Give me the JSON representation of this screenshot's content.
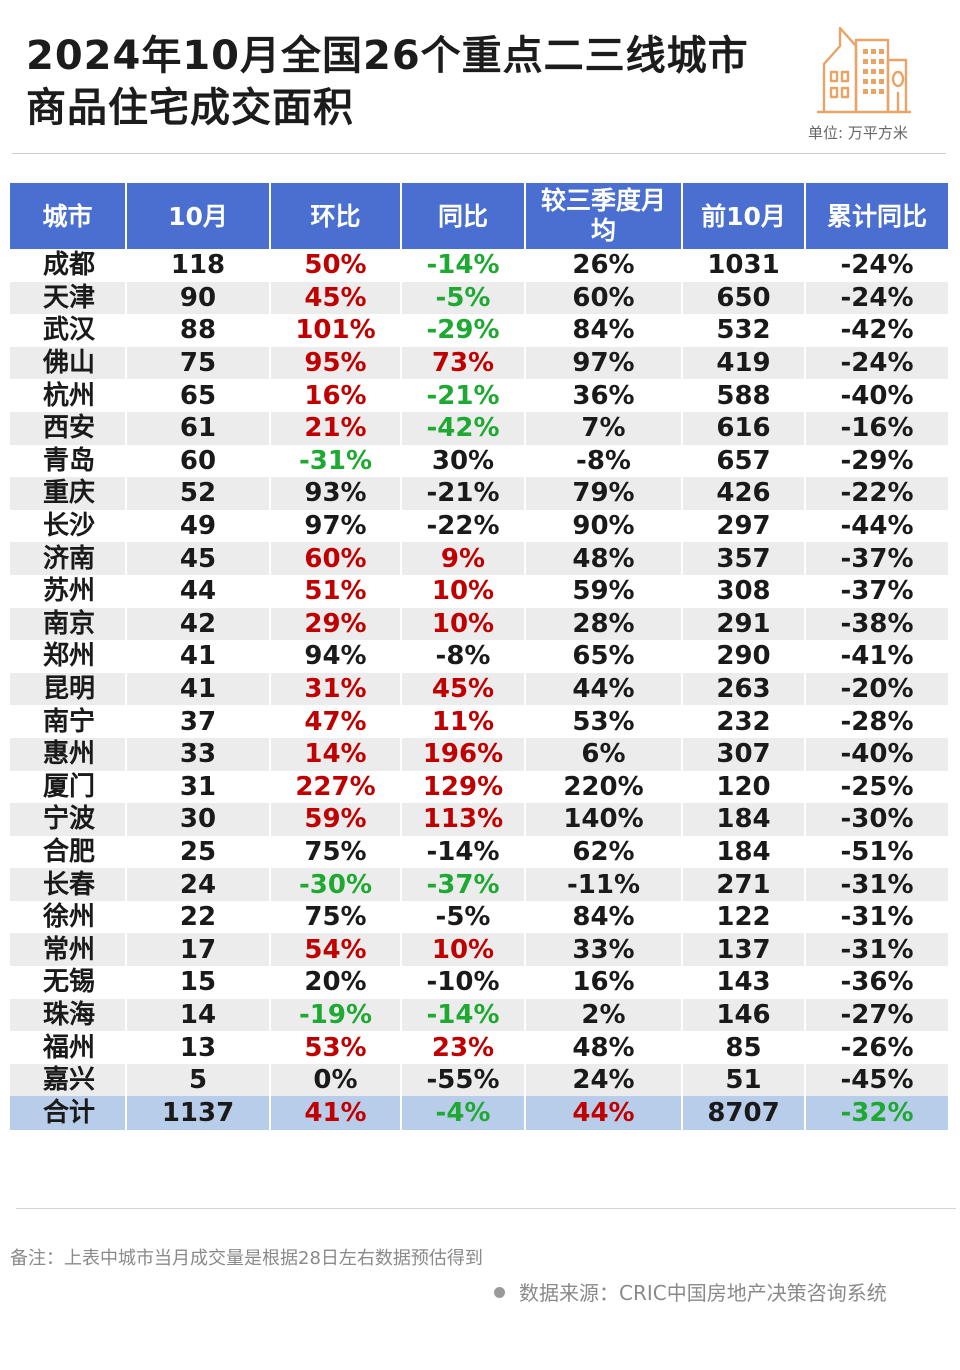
{
  "header": {
    "title_line1": "2024年10月全国26个重点二三线城市",
    "title_line2": "商品住宅成交面积",
    "unit": "单位: 万平方米"
  },
  "colors": {
    "header_bg": "#4a6fd1",
    "total_row_bg": "#b8cde9",
    "stripe_bg": "#ececec",
    "increase_red": "#c00000",
    "decrease_green": "#1fa832",
    "icon_orange": "#e8a366"
  },
  "chart_data": {
    "type": "table",
    "columns": [
      "城市",
      "10月",
      "环比",
      "同比",
      "较三季度月均",
      "前10月",
      "累计同比"
    ],
    "rows": [
      [
        "成都",
        "118",
        "50%",
        "-14%",
        "26%",
        "1031",
        "-24%"
      ],
      [
        "天津",
        "90",
        "45%",
        "-5%",
        "60%",
        "650",
        "-24%"
      ],
      [
        "武汉",
        "88",
        "101%",
        "-29%",
        "84%",
        "532",
        "-42%"
      ],
      [
        "佛山",
        "75",
        "95%",
        "73%",
        "97%",
        "419",
        "-24%"
      ],
      [
        "杭州",
        "65",
        "16%",
        "-21%",
        "36%",
        "588",
        "-40%"
      ],
      [
        "西安",
        "61",
        "21%",
        "-42%",
        "7%",
        "616",
        "-16%"
      ],
      [
        "青岛",
        "60",
        "-31%",
        "30%",
        "-8%",
        "657",
        "-29%"
      ],
      [
        "重庆",
        "52",
        "93%",
        "-21%",
        "79%",
        "426",
        "-22%"
      ],
      [
        "长沙",
        "49",
        "97%",
        "-22%",
        "90%",
        "297",
        "-44%"
      ],
      [
        "济南",
        "45",
        "60%",
        "9%",
        "48%",
        "357",
        "-37%"
      ],
      [
        "苏州",
        "44",
        "51%",
        "10%",
        "59%",
        "308",
        "-37%"
      ],
      [
        "南京",
        "42",
        "29%",
        "10%",
        "28%",
        "291",
        "-38%"
      ],
      [
        "郑州",
        "41",
        "94%",
        "-8%",
        "65%",
        "290",
        "-41%"
      ],
      [
        "昆明",
        "41",
        "31%",
        "45%",
        "44%",
        "263",
        "-20%"
      ],
      [
        "南宁",
        "37",
        "47%",
        "11%",
        "53%",
        "232",
        "-28%"
      ],
      [
        "惠州",
        "33",
        "14%",
        "196%",
        "6%",
        "307",
        "-40%"
      ],
      [
        "厦门",
        "31",
        "227%",
        "129%",
        "220%",
        "120",
        "-25%"
      ],
      [
        "宁波",
        "30",
        "59%",
        "113%",
        "140%",
        "184",
        "-30%"
      ],
      [
        "合肥",
        "25",
        "75%",
        "-14%",
        "62%",
        "184",
        "-51%"
      ],
      [
        "长春",
        "24",
        "-30%",
        "-37%",
        "-11%",
        "271",
        "-31%"
      ],
      [
        "徐州",
        "22",
        "75%",
        "-5%",
        "84%",
        "122",
        "-31%"
      ],
      [
        "常州",
        "17",
        "54%",
        "10%",
        "33%",
        "137",
        "-31%"
      ],
      [
        "无锡",
        "15",
        "20%",
        "-10%",
        "16%",
        "143",
        "-36%"
      ],
      [
        "珠海",
        "14",
        "-19%",
        "-14%",
        "2%",
        "146",
        "-27%"
      ],
      [
        "福州",
        "13",
        "53%",
        "23%",
        "48%",
        "85",
        "-26%"
      ],
      [
        "嘉兴",
        "5",
        "0%",
        "-55%",
        "24%",
        "51",
        "-45%"
      ]
    ],
    "total": [
      "合计",
      "1137",
      "41%",
      "-4%",
      "44%",
      "8707",
      "-32%"
    ],
    "cell_colors": {
      "rows": [
        [
          "",
          "",
          "up",
          "down",
          "",
          "",
          ""
        ],
        [
          "",
          "",
          "up",
          "down",
          "",
          "",
          ""
        ],
        [
          "",
          "",
          "up",
          "down",
          "",
          "",
          ""
        ],
        [
          "",
          "",
          "up",
          "up",
          "",
          "",
          ""
        ],
        [
          "",
          "",
          "up",
          "down",
          "",
          "",
          ""
        ],
        [
          "",
          "",
          "up",
          "down",
          "",
          "",
          ""
        ],
        [
          "",
          "",
          "down",
          "",
          "",
          "",
          ""
        ],
        [
          "",
          "",
          "",
          "",
          "",
          "",
          ""
        ],
        [
          "",
          "",
          "",
          "",
          "",
          "",
          ""
        ],
        [
          "",
          "",
          "up",
          "up",
          "",
          "",
          ""
        ],
        [
          "",
          "",
          "up",
          "up",
          "",
          "",
          ""
        ],
        [
          "",
          "",
          "up",
          "up",
          "",
          "",
          ""
        ],
        [
          "",
          "",
          "",
          "",
          "",
          "",
          ""
        ],
        [
          "",
          "",
          "up",
          "up",
          "",
          "",
          ""
        ],
        [
          "",
          "",
          "up",
          "up",
          "",
          "",
          ""
        ],
        [
          "",
          "",
          "up",
          "up",
          "",
          "",
          ""
        ],
        [
          "",
          "",
          "up",
          "up",
          "",
          "",
          ""
        ],
        [
          "",
          "",
          "up",
          "up",
          "",
          "",
          ""
        ],
        [
          "",
          "",
          "",
          "",
          "",
          "",
          ""
        ],
        [
          "",
          "",
          "down",
          "down",
          "",
          "",
          ""
        ],
        [
          "",
          "",
          "",
          "",
          "",
          "",
          ""
        ],
        [
          "",
          "",
          "up",
          "up",
          "",
          "",
          ""
        ],
        [
          "",
          "",
          "",
          "",
          "",
          "",
          ""
        ],
        [
          "",
          "",
          "down",
          "down",
          "",
          "",
          ""
        ],
        [
          "",
          "",
          "up",
          "up",
          "",
          "",
          ""
        ],
        [
          "",
          "",
          "",
          "",
          "",
          "",
          ""
        ]
      ],
      "total": [
        "",
        "",
        "up",
        "down",
        "up",
        "",
        "down"
      ]
    }
  },
  "footer": {
    "note": "备注：上表中城市当月成交量是根据28日左右数据预估得到",
    "source": "数据来源：CRIC中国房地产决策咨询系统"
  },
  "icons": {
    "header_icon": "buildings-icon",
    "source_bullet": "bullet-dot-icon"
  }
}
